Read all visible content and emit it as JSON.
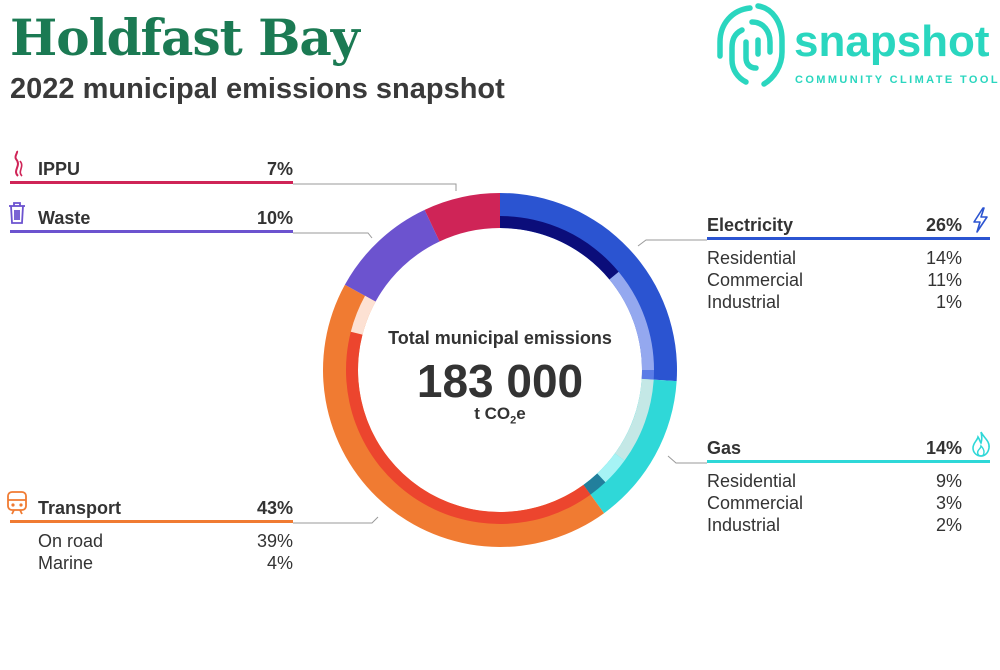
{
  "title": "Holdfast Bay",
  "subtitle": "2022 municipal emissions snapshot",
  "logo": {
    "word": "snapshot",
    "tagline": "COMMUNITY CLIMATE TOOL",
    "color": "#2ad6bf"
  },
  "center": {
    "label": "Total municipal emissions",
    "value": "183 000",
    "unit_prefix": "t CO",
    "unit_sub": "2",
    "unit_suffix": "e"
  },
  "chart_data": {
    "type": "pie",
    "style": "donut",
    "total": 183000,
    "unit": "t CO2e",
    "sectors": [
      {
        "name": "Electricity",
        "value": 26,
        "color": "#2b54d1",
        "icon": "lightning-icon",
        "subs": [
          {
            "name": "Residential",
            "value": 14,
            "color": "#0b0d7a"
          },
          {
            "name": "Commercial",
            "value": 11,
            "color": "#94a8ef"
          },
          {
            "name": "Industrial",
            "value": 1,
            "color": "#5b7ce6"
          }
        ]
      },
      {
        "name": "Gas",
        "value": 14,
        "color": "#2fd8d8",
        "icon": "flame-icon",
        "subs": [
          {
            "name": "Residential",
            "value": 9,
            "color": "#c4e8e6"
          },
          {
            "name": "Commercial",
            "value": 3,
            "color": "#a6f3f5"
          },
          {
            "name": "Industrial",
            "value": 2,
            "color": "#227f9c"
          }
        ]
      },
      {
        "name": "Transport",
        "value": 43,
        "color": "#f07b32",
        "icon": "train-icon",
        "subs": [
          {
            "name": "On road",
            "value": 39,
            "color": "#ec452e"
          },
          {
            "name": "Marine",
            "value": 4,
            "color": "#fde1d3"
          }
        ]
      },
      {
        "name": "Waste",
        "value": 10,
        "color": "#6c53cf",
        "icon": "bin-icon",
        "subs": []
      },
      {
        "name": "IPPU",
        "value": 7,
        "color": "#cf2457",
        "icon": "smokestack-icon",
        "subs": []
      }
    ],
    "labels": {
      "Electricity": "26%",
      "Gas": "14%",
      "Transport": "43%",
      "Waste": "10%",
      "IPPU": "7%",
      "subs": {
        "Electricity": [
          "14%",
          "11%",
          "1%"
        ],
        "Gas": [
          "9%",
          "3%",
          "2%"
        ],
        "Transport": [
          "39%",
          "4%"
        ]
      }
    }
  }
}
